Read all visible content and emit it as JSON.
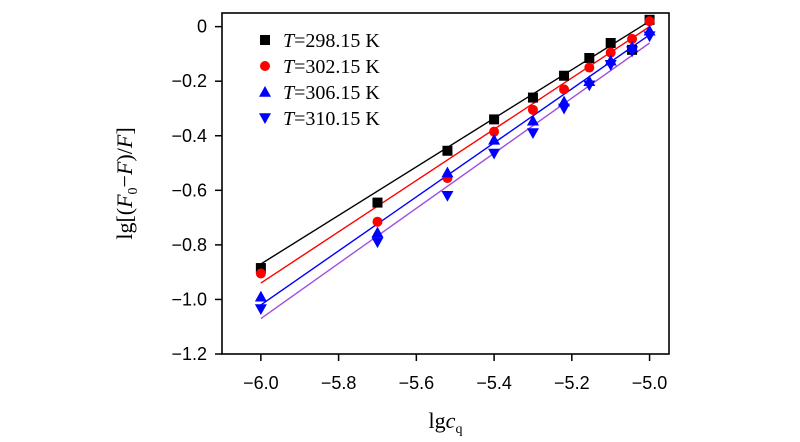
{
  "chart_data": {
    "type": "scatter",
    "title": "",
    "xlabel": "lgc_q",
    "xlabel_parts": {
      "main": "lg",
      "var": "c",
      "sub": "q"
    },
    "ylabel": "lg[(F0−F)/F]",
    "ylabel_parts": {
      "open": "lg[(",
      "f1": "F",
      "sub": "0",
      "minus": "−",
      "f2": "F",
      "close": ")/",
      "f3": "F",
      "end": "]"
    },
    "xlim": [
      -6.1,
      -4.95
    ],
    "ylim": [
      -1.2,
      0.05
    ],
    "x_ticks": [
      -6.0,
      -5.8,
      -5.6,
      -5.4,
      -5.2,
      -5.0
    ],
    "x_tick_labels": [
      "−6.0",
      "−5.8",
      "−5.6",
      "−5.4",
      "−5.2",
      "−5.0"
    ],
    "y_ticks": [
      0,
      -0.2,
      -0.4,
      -0.6,
      -0.8,
      -1.0,
      -1.2
    ],
    "y_tick_labels": [
      "0",
      "−0.2",
      "−0.4",
      "−0.6",
      "−0.8",
      "−1.0",
      "−1.2"
    ],
    "x": [
      -6.0,
      -5.7,
      -5.52,
      -5.4,
      -5.3,
      -5.22,
      -5.155,
      -5.1,
      -5.045,
      -5.0
    ],
    "series": [
      {
        "name": "T=298.15 K",
        "label_var": "T",
        "label_rest": "=298.15 K",
        "color": "#000000",
        "marker": "square",
        "values": [
          -0.885,
          -0.645,
          -0.455,
          -0.34,
          -0.26,
          -0.18,
          -0.115,
          -0.06,
          -0.085,
          0.025
        ],
        "fit": {
          "x": [
            -6.0,
            -5.0
          ],
          "y": [
            -0.87,
            0.02
          ]
        }
      },
      {
        "name": "T=302.15 K",
        "label_var": "T",
        "label_rest": "=302.15 K",
        "color": "#ff0000",
        "marker": "circle",
        "values": [
          -0.905,
          -0.715,
          -0.555,
          -0.385,
          -0.305,
          -0.23,
          -0.15,
          -0.095,
          -0.045,
          0.02
        ],
        "fit": {
          "x": [
            -6.0,
            -5.0
          ],
          "y": [
            -0.94,
            0.0
          ]
        }
      },
      {
        "name": "T=306.15 K",
        "label_var": "T",
        "label_rest": "=306.15 K",
        "color": "#0000ff",
        "marker": "triangle-up",
        "values": [
          -0.99,
          -0.755,
          -0.535,
          -0.415,
          -0.345,
          -0.275,
          -0.2,
          -0.125,
          -0.075,
          -0.015
        ],
        "fit": {
          "x": [
            -6.0,
            -5.0
          ],
          "y": [
            -1.02,
            -0.03
          ]
        }
      },
      {
        "name": "T=310.15 K",
        "label_var": "T",
        "label_rest": "=310.15 K",
        "color": "#0000ff",
        "fit_color": "#a050e0",
        "marker": "triangle-down",
        "values": [
          -1.035,
          -0.79,
          -0.62,
          -0.465,
          -0.39,
          -0.3,
          -0.215,
          -0.14,
          -0.09,
          -0.035
        ],
        "fit": {
          "x": [
            -6.0,
            -5.0
          ],
          "y": [
            -1.07,
            -0.06
          ]
        }
      }
    ],
    "legend": "top-left"
  }
}
